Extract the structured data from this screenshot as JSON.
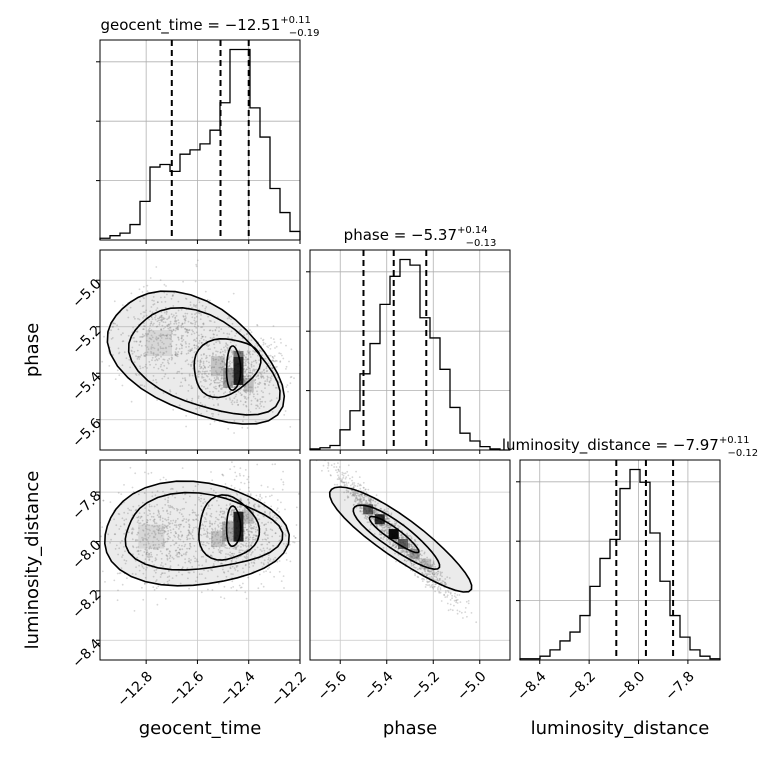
{
  "chart_data": {
    "type": "corner",
    "parameters": [
      {
        "name": "geocent_time",
        "axis_label": "geocent_time",
        "title_prefix": "geocent_time = −12.51",
        "title_plus": "+0.11",
        "title_minus": "−0.19",
        "range": [
          -12.98,
          -12.2
        ],
        "ticks": [
          -12.8,
          -12.6,
          -12.4,
          -12.2
        ],
        "tick_labels": [
          "−12.8",
          "−12.6",
          "−12.4",
          "−12.2"
        ],
        "quantiles": [
          -12.7,
          -12.51,
          -12.4
        ],
        "hist_counts": [
          2,
          5,
          8,
          18,
          45,
          85,
          88,
          80,
          100,
          105,
          112,
          128,
          160,
          222,
          222,
          154,
          120,
          60,
          32,
          10
        ]
      },
      {
        "name": "phase",
        "axis_label": "phase",
        "title_prefix": "phase = −5.37",
        "title_plus": "+0.14",
        "title_minus": "−0.13",
        "range": [
          -5.73,
          -4.87
        ],
        "ticks": [
          -5.6,
          -5.4,
          -5.2,
          -5.0
        ],
        "tick_labels": [
          "−5.6",
          "−5.4",
          "−5.2",
          "−5.0"
        ],
        "quantiles": [
          -5.5,
          -5.37,
          -5.23
        ],
        "hist_counts": [
          1,
          2,
          4,
          18,
          35,
          68,
          95,
          130,
          155,
          170,
          165,
          118,
          100,
          72,
          38,
          15,
          8,
          3,
          1,
          0
        ]
      },
      {
        "name": "luminosity_distance",
        "axis_label": "luminosity_distance",
        "title_prefix": "luminosity_distance = −7.97",
        "title_plus": "+0.11",
        "title_minus": "−0.12",
        "range": [
          -8.48,
          -7.67
        ],
        "ticks": [
          -8.4,
          -8.2,
          -8.0,
          -7.8
        ],
        "tick_labels": [
          "−8.4",
          "−8.2",
          "−8.0",
          "−7.8"
        ],
        "y_ticks_left": [
          -7.8,
          -8.0,
          -8.2,
          -8.4
        ],
        "quantiles": [
          -8.09,
          -7.97,
          -7.86
        ],
        "hist_counts": [
          1,
          1,
          3,
          8,
          15,
          22,
          35,
          58,
          80,
          95,
          135,
          150,
          140,
          100,
          62,
          35,
          18,
          8,
          3,
          1
        ]
      }
    ],
    "pairs": [
      {
        "x": "geocent_time",
        "y": "phase",
        "peak": [
          -12.44,
          -5.39
        ],
        "secondary_mode": [
          -12.75,
          -5.27
        ],
        "correlation": "negative"
      },
      {
        "x": "geocent_time",
        "y": "luminosity_distance",
        "peak": [
          -12.44,
          -7.94
        ],
        "secondary_mode": [
          -12.75,
          -7.97
        ],
        "correlation": "none"
      },
      {
        "x": "phase",
        "y": "luminosity_distance",
        "peak": [
          -5.37,
          -7.97
        ],
        "correlation": "strong negative"
      }
    ],
    "quantile_line_style": "dashed",
    "grid": true
  }
}
